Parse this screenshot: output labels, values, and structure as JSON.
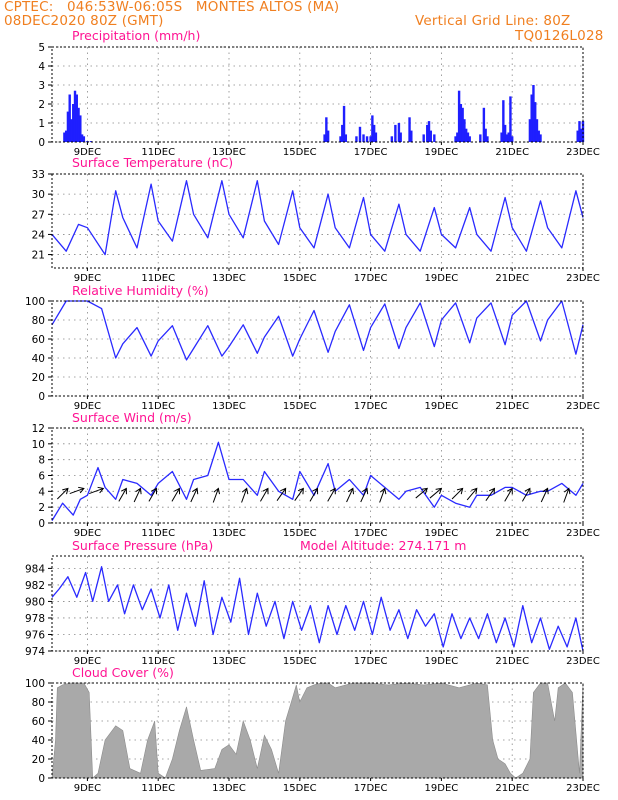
{
  "header": {
    "station": "CPTEC:   046:53W-06:05S   MONTES ALTOS (MA)",
    "date": "08DEC2020 80Z (GMT)",
    "grid_line": "Vertical Grid Line: 80Z",
    "code": "TQ0126L028"
  },
  "x_axis": {
    "days": [
      "9DEC",
      "11DEC",
      "13DEC",
      "15DEC",
      "17DEC",
      "19DEC",
      "21DEC",
      "23DEC"
    ],
    "day_positions": [
      9,
      11,
      13,
      15,
      17,
      19,
      21,
      23
    ],
    "xlim": [
      8.0,
      23.0
    ]
  },
  "colors": {
    "line": "#2a2aff",
    "bar": "#1f1fff",
    "cloud": "#a9a9a9",
    "title": "#ff1493",
    "header": "#f07f20"
  },
  "chart_data": [
    {
      "id": "precip",
      "type": "bar",
      "title": "Precipitation (mm/h)",
      "title2": "",
      "ylim": [
        0,
        5
      ],
      "yticks": [
        0,
        1,
        2,
        3,
        4,
        5
      ],
      "x": [
        8.35,
        8.4,
        8.45,
        8.5,
        8.55,
        8.6,
        8.65,
        8.7,
        8.75,
        8.8,
        8.85,
        8.9,
        9.0,
        9.1,
        15.7,
        15.75,
        15.8,
        16.15,
        16.2,
        16.25,
        16.3,
        16.6,
        16.7,
        16.8,
        16.9,
        17.0,
        17.05,
        17.1,
        17.15,
        17.6,
        17.7,
        17.8,
        17.85,
        18.1,
        18.15,
        18.5,
        18.6,
        18.65,
        18.7,
        18.8,
        19.4,
        19.45,
        19.5,
        19.55,
        19.6,
        19.65,
        19.7,
        19.75,
        19.8,
        20.1,
        20.2,
        20.25,
        20.3,
        20.7,
        20.75,
        20.8,
        20.85,
        20.9,
        20.95,
        21.0,
        21.5,
        21.55,
        21.6,
        21.65,
        21.7,
        21.75,
        21.8,
        22.85,
        22.9,
        22.95,
        23.0
      ],
      "values": [
        0.5,
        0.6,
        1.6,
        2.5,
        1.2,
        2.0,
        2.7,
        2.5,
        1.8,
        1.4,
        0.4,
        0.3,
        0.05,
        0.05,
        0.4,
        1.3,
        0.6,
        0.3,
        0.9,
        1.9,
        0.4,
        0.3,
        0.8,
        0.4,
        0.3,
        0.3,
        1.4,
        0.9,
        0.5,
        0.3,
        0.9,
        1.0,
        0.5,
        1.3,
        0.6,
        0.4,
        0.9,
        1.1,
        0.6,
        0.4,
        0.3,
        0.5,
        2.7,
        2.0,
        1.8,
        1.2,
        0.7,
        0.5,
        0.3,
        0.4,
        1.8,
        0.7,
        0.3,
        0.5,
        2.2,
        0.9,
        0.4,
        0.5,
        2.4,
        0.3,
        1.2,
        2.5,
        3.0,
        2.1,
        1.2,
        0.6,
        0.4,
        0.6,
        1.1,
        0.7,
        1.1
      ]
    },
    {
      "id": "temp",
      "type": "line",
      "title": "Surface Temperature (nC)",
      "title2": "",
      "ylim": [
        19,
        33
      ],
      "yticks": [
        21,
        24,
        27,
        30,
        33
      ],
      "x": [
        8.0,
        8.4,
        8.75,
        9.0,
        9.5,
        9.8,
        10.0,
        10.4,
        10.8,
        11.0,
        11.4,
        11.8,
        12.0,
        12.4,
        12.8,
        13.0,
        13.4,
        13.8,
        14.0,
        14.4,
        14.8,
        15.0,
        15.4,
        15.8,
        16.0,
        16.4,
        16.8,
        17.0,
        17.4,
        17.8,
        18.0,
        18.4,
        18.8,
        19.0,
        19.4,
        19.8,
        20.0,
        20.4,
        20.8,
        21.0,
        21.4,
        21.8,
        22.0,
        22.4,
        22.8,
        23.0
      ],
      "values": [
        24.0,
        21.5,
        25.5,
        25.0,
        21.0,
        30.5,
        26.5,
        22.0,
        31.5,
        26.0,
        23.0,
        32.0,
        27.0,
        23.5,
        32.0,
        27.0,
        23.5,
        32.0,
        26.0,
        22.5,
        30.5,
        25.0,
        22.0,
        30.0,
        25.0,
        22.0,
        29.5,
        24.0,
        21.5,
        28.5,
        24.0,
        21.5,
        28.0,
        24.0,
        22.0,
        28.0,
        24.0,
        21.5,
        29.5,
        25.0,
        21.5,
        29.0,
        25.0,
        22.0,
        30.5,
        26.5
      ]
    },
    {
      "id": "rh",
      "type": "line",
      "title": "Relative Humidity (%)",
      "title2": "",
      "ylim": [
        0,
        100
      ],
      "yticks": [
        0,
        20,
        40,
        60,
        80,
        100
      ],
      "x": [
        8.0,
        8.4,
        8.8,
        9.0,
        9.4,
        9.8,
        10.0,
        10.4,
        10.8,
        11.0,
        11.4,
        11.8,
        12.0,
        12.4,
        12.8,
        13.0,
        13.4,
        13.8,
        14.0,
        14.4,
        14.8,
        15.0,
        15.4,
        15.8,
        16.0,
        16.4,
        16.8,
        17.0,
        17.4,
        17.8,
        18.0,
        18.4,
        18.8,
        19.0,
        19.4,
        19.8,
        20.0,
        20.4,
        20.8,
        21.0,
        21.4,
        21.8,
        22.0,
        22.4,
        22.8,
        23.0
      ],
      "values": [
        75,
        100,
        100,
        100,
        92,
        40,
        55,
        72,
        42,
        58,
        74,
        38,
        50,
        74,
        42,
        52,
        75,
        45,
        62,
        84,
        42,
        60,
        90,
        46,
        68,
        96,
        48,
        72,
        97,
        50,
        72,
        98,
        52,
        80,
        98,
        56,
        82,
        98,
        54,
        85,
        100,
        58,
        80,
        100,
        44,
        75
      ]
    },
    {
      "id": "wind",
      "type": "line",
      "title": "Surface Wind (m/s)",
      "title2": "",
      "ylim": [
        0,
        12
      ],
      "yticks": [
        0,
        2,
        4,
        6,
        8,
        10,
        12
      ],
      "x": [
        8.0,
        8.3,
        8.6,
        8.8,
        9.0,
        9.3,
        9.5,
        9.8,
        10.0,
        10.4,
        10.8,
        11.0,
        11.4,
        11.8,
        12.0,
        12.4,
        12.7,
        13.0,
        13.4,
        13.8,
        14.0,
        14.4,
        14.8,
        15.0,
        15.4,
        15.8,
        16.0,
        16.4,
        16.8,
        17.0,
        17.4,
        17.8,
        18.0,
        18.4,
        18.8,
        19.0,
        19.4,
        19.8,
        20.0,
        20.4,
        20.8,
        21.0,
        21.4,
        21.8,
        22.0,
        22.4,
        22.8,
        23.0
      ],
      "values": [
        0.3,
        2.5,
        1.0,
        3.0,
        3.5,
        7.0,
        4.5,
        3.0,
        5.5,
        5.0,
        3.5,
        5.0,
        6.5,
        3.0,
        5.5,
        6.0,
        10.2,
        5.5,
        5.5,
        3.5,
        6.5,
        4.0,
        3.0,
        6.5,
        3.5,
        7.5,
        4.0,
        5.5,
        3.5,
        6.0,
        4.5,
        3.0,
        4.0,
        4.5,
        2.0,
        3.5,
        2.5,
        2.0,
        3.5,
        3.5,
        4.5,
        4.5,
        3.5,
        4.0,
        4.0,
        5.0,
        3.5,
        5.0
      ],
      "arrows": [
        {
          "x": 8.45,
          "dir": 225
        },
        {
          "x": 8.9,
          "dir": 200
        },
        {
          "x": 9.45,
          "dir": 200
        },
        {
          "x": 10.1,
          "dir": 240
        },
        {
          "x": 10.5,
          "dir": 245
        },
        {
          "x": 10.95,
          "dir": 240
        },
        {
          "x": 11.6,
          "dir": 240
        },
        {
          "x": 12.1,
          "dir": 245
        },
        {
          "x": 12.7,
          "dir": 250
        },
        {
          "x": 13.5,
          "dir": 250
        },
        {
          "x": 14.1,
          "dir": 240
        },
        {
          "x": 14.6,
          "dir": 235
        },
        {
          "x": 15.1,
          "dir": 235
        },
        {
          "x": 15.5,
          "dir": 240
        },
        {
          "x": 16.0,
          "dir": 240
        },
        {
          "x": 16.5,
          "dir": 245
        },
        {
          "x": 16.9,
          "dir": 245
        },
        {
          "x": 17.4,
          "dir": 250
        },
        {
          "x": 18.6,
          "dir": 220
        },
        {
          "x": 19.0,
          "dir": 220
        },
        {
          "x": 19.6,
          "dir": 225
        },
        {
          "x": 20.0,
          "dir": 230
        },
        {
          "x": 20.5,
          "dir": 235
        },
        {
          "x": 21.0,
          "dir": 240
        },
        {
          "x": 21.5,
          "dir": 240
        },
        {
          "x": 22.0,
          "dir": 245
        },
        {
          "x": 22.6,
          "dir": 250
        }
      ]
    },
    {
      "id": "press",
      "type": "line",
      "title": "Surface Pressure (hPa)",
      "title2": "Model Altitude: 274.171  m",
      "ylim": [
        974,
        985.5
      ],
      "yticks": [
        974,
        976,
        978,
        980,
        982,
        984
      ],
      "x": [
        8.0,
        8.2,
        8.45,
        8.7,
        8.95,
        9.15,
        9.4,
        9.6,
        9.85,
        10.05,
        10.3,
        10.55,
        10.8,
        11.05,
        11.3,
        11.55,
        11.8,
        12.05,
        12.3,
        12.55,
        12.8,
        13.05,
        13.3,
        13.55,
        13.8,
        14.05,
        14.3,
        14.55,
        14.8,
        15.05,
        15.3,
        15.55,
        15.8,
        16.05,
        16.3,
        16.55,
        16.8,
        17.05,
        17.3,
        17.55,
        17.8,
        18.05,
        18.3,
        18.55,
        18.8,
        19.05,
        19.3,
        19.55,
        19.8,
        20.05,
        20.3,
        20.55,
        20.8,
        21.05,
        21.3,
        21.55,
        21.8,
        22.05,
        22.3,
        22.55,
        22.8,
        23.0
      ],
      "values": [
        980.5,
        981.5,
        983.0,
        980.5,
        983.5,
        980.0,
        984.2,
        980.0,
        982.0,
        978.5,
        982.0,
        979.0,
        981.5,
        978.0,
        982.0,
        976.5,
        981.0,
        977.0,
        982.5,
        976.0,
        980.5,
        977.5,
        982.8,
        976.0,
        981.0,
        977.0,
        980.0,
        975.5,
        980.0,
        976.5,
        979.5,
        975.0,
        979.5,
        976.0,
        979.5,
        976.5,
        980.0,
        976.0,
        980.5,
        976.5,
        979.0,
        975.5,
        979.0,
        977.0,
        978.5,
        974.5,
        978.5,
        975.5,
        978.0,
        975.5,
        978.5,
        975.0,
        978.0,
        974.5,
        979.5,
        975.0,
        978.0,
        974.2,
        977.0,
        974.5,
        978.0,
        974.0
      ]
    },
    {
      "id": "cloud",
      "type": "area",
      "title": "Cloud Cover (%)",
      "title2": "",
      "ylim": [
        0,
        100
      ],
      "yticks": [
        0,
        20,
        40,
        60,
        80,
        100
      ],
      "x": [
        8.0,
        8.1,
        8.15,
        8.3,
        8.5,
        8.9,
        9.05,
        9.15,
        9.3,
        9.5,
        9.8,
        10.0,
        10.2,
        10.5,
        10.7,
        10.9,
        11.0,
        11.2,
        11.4,
        11.6,
        11.8,
        12.0,
        12.2,
        12.6,
        12.8,
        13.0,
        13.2,
        13.4,
        13.6,
        13.8,
        14.0,
        14.2,
        14.4,
        14.6,
        14.8,
        14.9,
        15.0,
        15.2,
        15.4,
        15.6,
        15.8,
        16.0,
        16.5,
        17.0,
        17.5,
        18.0,
        18.5,
        19.0,
        19.5,
        20.0,
        20.3,
        20.45,
        20.6,
        20.8,
        20.95,
        21.1,
        21.3,
        21.5,
        21.6,
        21.8,
        22.0,
        22.2,
        22.3,
        22.5,
        22.7,
        22.9,
        23.0
      ],
      "values": [
        0,
        40,
        95,
        98,
        100,
        100,
        90,
        0,
        5,
        40,
        55,
        50,
        10,
        5,
        40,
        60,
        5,
        0,
        20,
        50,
        75,
        40,
        8,
        10,
        30,
        35,
        25,
        60,
        40,
        10,
        45,
        30,
        5,
        60,
        85,
        98,
        80,
        95,
        98,
        100,
        100,
        95,
        100,
        100,
        98,
        100,
        98,
        100,
        95,
        100,
        98,
        40,
        20,
        15,
        5,
        0,
        5,
        20,
        90,
        100,
        100,
        60,
        95,
        100,
        90,
        5,
        100
      ]
    }
  ]
}
